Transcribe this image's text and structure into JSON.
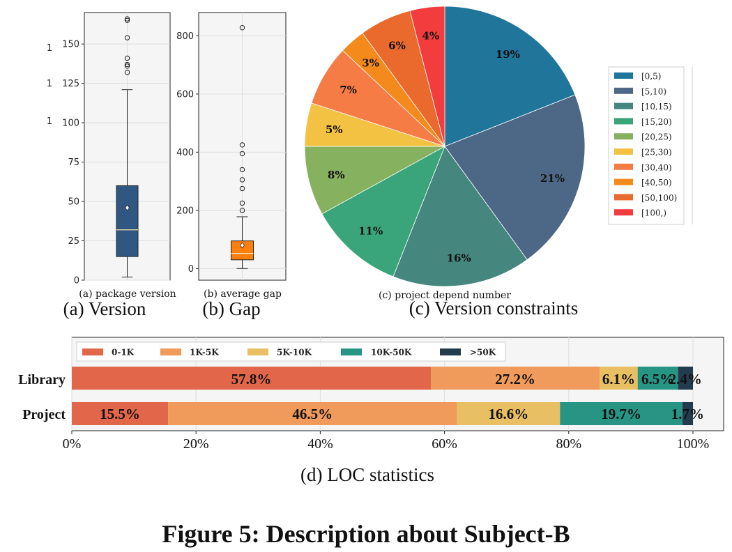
{
  "caption": "Figure 5: Description about Subject-B",
  "chart_data": [
    {
      "type": "box",
      "subtitle": "(a) package version",
      "caption": "(a)  Version",
      "ylim": [
        0,
        170
      ],
      "yticks": [
        0,
        25,
        50,
        75,
        100,
        125,
        150
      ],
      "edge_ticks": [
        "1",
        "1",
        "1"
      ],
      "box": {
        "whisker_low": 2,
        "q1": 15,
        "median": 32,
        "q3": 60,
        "whisker_high": 121,
        "mean": 46,
        "outliers": [
          132,
          136,
          137,
          141,
          154,
          165,
          166
        ]
      },
      "color": "#2f5782"
    },
    {
      "type": "box",
      "subtitle": "(b) average gap",
      "caption": "(b)  Gap",
      "ylim": [
        -40,
        880
      ],
      "yticks": [
        0,
        200,
        400,
        600,
        800
      ],
      "box": {
        "whisker_low": 0,
        "q1": 30,
        "median": 52,
        "q3": 95,
        "whisker_high": 178,
        "mean": 80,
        "outliers": [
          200,
          225,
          275,
          305,
          340,
          395,
          425,
          828
        ]
      },
      "color": "#ff7f0e"
    },
    {
      "type": "pie",
      "subtitle": "(c) project depend number",
      "caption": "(c)  Version constraints",
      "legend": "right",
      "slices": [
        {
          "label": "[0,5)",
          "value": 19,
          "text": "19%",
          "color": "#20759a"
        },
        {
          "label": "[5,10)",
          "value": 21,
          "text": "21%",
          "color": "#4d6886"
        },
        {
          "label": "[10,15)",
          "value": 16,
          "text": "16%",
          "color": "#45877f"
        },
        {
          "label": "[15,20)",
          "value": 11,
          "text": "11%",
          "color": "#3aa47b"
        },
        {
          "label": "[20,25)",
          "value": 8,
          "text": "8%",
          "color": "#86b25f"
        },
        {
          "label": "[25,30)",
          "value": 5,
          "text": "5%",
          "color": "#f4c243"
        },
        {
          "label": "[30,40)",
          "value": 7,
          "text": "7%",
          "color": "#f67c46"
        },
        {
          "label": "[40,50)",
          "value": 3,
          "text": "3%",
          "color": "#f38a1b"
        },
        {
          "label": "[50,100)",
          "value": 6,
          "text": "6%",
          "color": "#ea692d"
        },
        {
          "label": "[100,)",
          "value": 4,
          "text": "4%",
          "color": "#f33c3e"
        }
      ]
    },
    {
      "type": "bar",
      "orientation": "horizontal-stacked",
      "caption": "(d)  LOC statistics",
      "categories": [
        "Library",
        "Project"
      ],
      "series": [
        {
          "name": "0-1K",
          "values": [
            57.8,
            15.5
          ],
          "labels": [
            "57.8%",
            "15.5%"
          ],
          "color": "#e2664a"
        },
        {
          "name": "1K-5K",
          "values": [
            27.2,
            46.5
          ],
          "labels": [
            "27.2%",
            "46.5%"
          ],
          "color": "#f09a5b"
        },
        {
          "name": "5K-10K",
          "values": [
            6.1,
            16.6
          ],
          "labels": [
            "6.1%",
            "16.6%"
          ],
          "color": "#e8bf63"
        },
        {
          "name": "10K-50K",
          "values": [
            6.5,
            19.7
          ],
          "labels": [
            "6.5%",
            "19.7%"
          ],
          "color": "#289484"
        },
        {
          "name": ">50K",
          "values": [
            2.4,
            1.7
          ],
          "labels": [
            "2.4%",
            "1.7%"
          ],
          "color": "#233c4d"
        }
      ],
      "xlim": [
        0,
        100
      ],
      "xticks": [
        "0%",
        "20%",
        "40%",
        "60%",
        "80%",
        "100%"
      ],
      "legend": "top-left"
    }
  ]
}
